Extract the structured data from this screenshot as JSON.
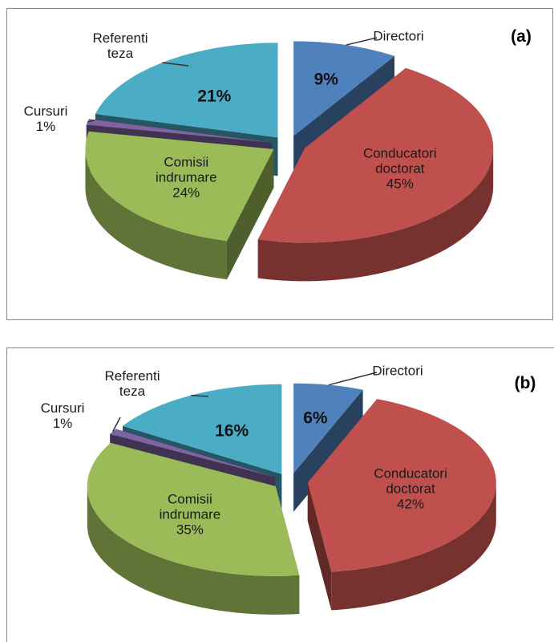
{
  "chart_data": [
    {
      "type": "pie",
      "title": "(a)",
      "categories": [
        "Directori",
        "Conducatori doctorat",
        "Comisii indrumare",
        "Cursuri",
        "Referenti teza"
      ],
      "values": [
        9,
        45,
        24,
        1,
        21
      ],
      "value_labels": [
        "9%",
        "45%",
        "24%",
        "1%",
        "21%"
      ],
      "colors": [
        "#4f81bd",
        "#c0504d",
        "#9bbb59",
        "#8064a2",
        "#4bacc6"
      ]
    },
    {
      "type": "pie",
      "title": "(b)",
      "categories": [
        "Directori",
        "Conducatori doctorat",
        "Comisii indrumare",
        "Cursuri",
        "Referenti teza"
      ],
      "values": [
        6,
        42,
        35,
        1,
        16
      ],
      "value_labels": [
        "6%",
        "42%",
        "35%",
        "1%",
        "16%"
      ],
      "colors": [
        "#4f81bd",
        "#c0504d",
        "#9bbb59",
        "#8064a2",
        "#4bacc6"
      ]
    }
  ]
}
